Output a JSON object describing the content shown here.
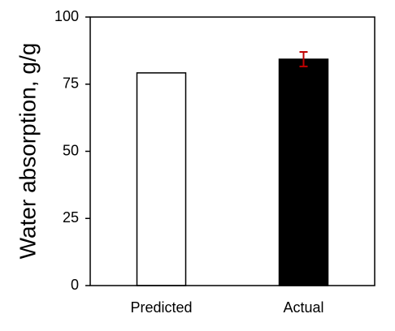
{
  "chart_data": {
    "type": "bar",
    "y_label": "Water absorption, g/g",
    "categories": [
      "Predicted",
      "Actual"
    ],
    "values": [
      79.2,
      84.3
    ],
    "errors": [
      null,
      2.7
    ],
    "colors": [
      "#ffffff",
      "#000000"
    ],
    "error_color": "#c00000",
    "ylim": [
      0,
      100
    ],
    "yticks": [
      0,
      25,
      50,
      75,
      100
    ]
  }
}
